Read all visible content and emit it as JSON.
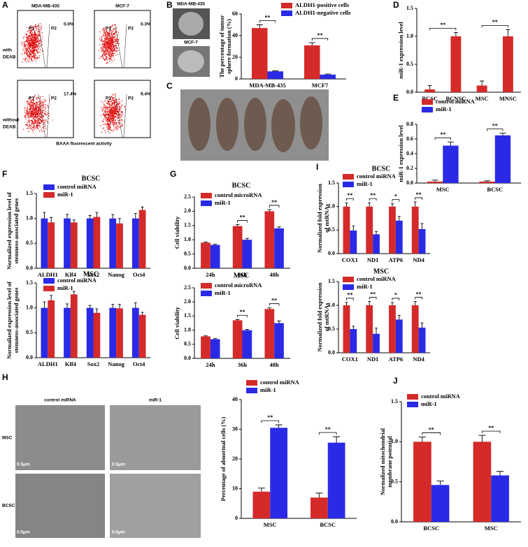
{
  "panels": {
    "letters": [
      "A",
      "B",
      "C",
      "D",
      "E",
      "F",
      "G",
      "H",
      "I",
      "J"
    ],
    "a": {
      "columns": [
        "MDA-MB-435",
        "MCF-7"
      ],
      "rows": [
        [
          "with",
          "DEAB"
        ],
        [
          "without",
          "DEAB"
        ]
      ],
      "gates": [
        "P1",
        "P2"
      ],
      "percent": [
        [
          "0.0%",
          "0.3%"
        ],
        [
          "17.4%",
          "9.4%"
        ]
      ],
      "xlabel": "BAAA fluorescent activity"
    },
    "b_images": [
      "MDA-MB-435",
      "MCF-7"
    ],
    "h": {
      "columns": [
        "control miRNA",
        "miR-1"
      ],
      "rows": [
        "MSC",
        "BCSC"
      ],
      "scale": "0.5μm"
    }
  },
  "chart_data": [
    {
      "type": "bar",
      "ylabel": [
        "The percentage of tumor",
        "sphere formation (%)"
      ],
      "categories": [
        "MDA-MB-435",
        "MCF7"
      ],
      "series": [
        {
          "name": "ALDH1-positive cells",
          "color": "#d42a2a",
          "values": [
            47,
            31
          ],
          "errors": [
            3,
            2.5
          ]
        },
        {
          "name": "ALDH1-negative cells",
          "color": "#2a2ae6",
          "values": [
            7,
            4
          ],
          "errors": [
            0.5,
            0.5
          ]
        }
      ],
      "ylim": [
        0,
        60
      ],
      "yticks": [
        0,
        20,
        40,
        60
      ],
      "significance": [
        "**",
        "**"
      ]
    },
    {
      "type": "bar",
      "ylabel": [
        "miR-1 expression level"
      ],
      "categories": [
        "BCSC",
        "BCNSC",
        "MSC",
        "MNSC"
      ],
      "series": [
        {
          "color": "#d42a2a",
          "values": [
            0.05,
            1.0,
            0.12,
            1.0
          ],
          "errors": [
            0.07,
            0.07,
            0.08,
            0.12
          ]
        }
      ],
      "ylim": [
        0,
        1.5
      ],
      "yticks": [
        {
          "value": 0,
          "label": "0.0"
        },
        0.5,
        {
          "value": 1,
          "label": "1.0"
        },
        1.5
      ],
      "significance": [
        "**",
        "**"
      ]
    },
    {
      "type": "bar",
      "ylabel": [
        "miR-1 expression level"
      ],
      "categories": [
        "MSC",
        "BCSC"
      ],
      "series": [
        {
          "name": "control miRNA",
          "color": "#d42a2a",
          "values": [
            0.02,
            0.02
          ],
          "errors": [
            0.02,
            0.01
          ]
        },
        {
          "name": "miR-1",
          "color": "#2a2ae6",
          "values": [
            0.51,
            0.65
          ],
          "errors": [
            0.05,
            0.03
          ]
        }
      ],
      "ylim": [
        0,
        0.8
      ],
      "yticks": [
        {
          "value": 0,
          "label": "0.0"
        },
        0.2,
        0.4,
        0.6,
        0.8
      ],
      "significance": [
        "**",
        "**"
      ]
    },
    {
      "type": "bar",
      "title": "BCSC",
      "ylabel": [
        "Normalized expression level of",
        "stemness-associated genes"
      ],
      "categories": [
        "ALDH1",
        "Klf4",
        "Sox2",
        "Nanog",
        "Oct4"
      ],
      "series": [
        {
          "name": "control miRNA",
          "color": "#2a2ae6",
          "values": [
            1.0,
            1.0,
            1.0,
            1.0,
            1.0
          ],
          "errors": [
            0.12,
            0.08,
            0.06,
            0.08,
            0.1
          ]
        },
        {
          "name": "miR-1",
          "color": "#d42a2a",
          "values": [
            0.92,
            0.92,
            1.03,
            0.9,
            1.17
          ],
          "errors": [
            0.1,
            0.05,
            0.09,
            0.1,
            0.06
          ]
        }
      ],
      "ylim": [
        0,
        1.5
      ],
      "yticks": [
        {
          "value": 0,
          "label": "0.0"
        },
        0.5,
        {
          "value": 1,
          "label": "1.0"
        },
        1.5
      ]
    },
    {
      "type": "bar",
      "title": "MSC",
      "ylabel": [
        "Normalized expression level of",
        "stemness-associated genes"
      ],
      "categories": [
        "ALDH1",
        "Klf4",
        "Sox2",
        "Nanog",
        "Oct4"
      ],
      "series": [
        {
          "name": "control miRNA",
          "color": "#2a2ae6",
          "values": [
            1.0,
            1.0,
            1.0,
            1.0,
            1.0
          ],
          "errors": [
            0.12,
            0.08,
            0.05,
            0.07,
            0.1
          ]
        },
        {
          "name": "miR-1",
          "color": "#d42a2a",
          "values": [
            1.15,
            1.27,
            0.9,
            0.99,
            0.86
          ],
          "errors": [
            0.1,
            0.06,
            0.08,
            0.08,
            0.05
          ]
        }
      ],
      "ylim": [
        0,
        1.5
      ],
      "yticks": [
        {
          "value": 0,
          "label": "0.0"
        },
        0.5,
        {
          "value": 1,
          "label": "1.0"
        },
        1.5
      ]
    },
    {
      "type": "bar",
      "title": "BCSC",
      "ylabel": [
        "Cell viability"
      ],
      "categories": [
        "24h",
        "36h",
        "48h"
      ],
      "series": [
        {
          "name": "control microRNA",
          "color": "#d42a2a",
          "values": [
            0.9,
            1.48,
            2.0
          ],
          "errors": [
            0.02,
            0.05,
            0.06
          ]
        },
        {
          "name": "miR-1",
          "color": "#2a2ae6",
          "values": [
            0.82,
            1.0,
            1.4
          ],
          "errors": [
            0.02,
            0.05,
            0.05
          ]
        }
      ],
      "ylim": [
        0,
        2.5
      ],
      "yticks": [
        {
          "value": 0,
          "label": "0.0"
        },
        0.5,
        {
          "value": 1,
          "label": "1.0"
        },
        1.5,
        {
          "value": 2,
          "label": "2.0"
        },
        2.5
      ],
      "significance": [
        null,
        "**",
        "**"
      ]
    },
    {
      "type": "bar",
      "title": "MSC",
      "ylabel": [
        "Cell viability"
      ],
      "categories": [
        "24h",
        "36h",
        "48h"
      ],
      "series": [
        {
          "name": "control microRNA",
          "color": "#d42a2a",
          "values": [
            0.78,
            1.35,
            1.75
          ],
          "errors": [
            0.02,
            0.03,
            0.04
          ]
        },
        {
          "name": "miR-1",
          "color": "#2a2ae6",
          "values": [
            0.68,
            1.0,
            1.25
          ],
          "errors": [
            0.02,
            0.03,
            0.08
          ]
        }
      ],
      "ylim": [
        0,
        2.5
      ],
      "yticks": [
        {
          "value": 0,
          "label": "0.0"
        },
        0.5,
        {
          "value": 1,
          "label": "1.0"
        },
        1.5,
        {
          "value": 2,
          "label": "2.0"
        },
        2.5
      ],
      "significance": [
        null,
        "**",
        "**"
      ]
    },
    {
      "type": "bar",
      "title": "BCSC",
      "ylabel": [
        "Normalized fold expression",
        "of mtRNAs"
      ],
      "categories": [
        "COX1",
        "ND1",
        "ATP6",
        "ND4"
      ],
      "series": [
        {
          "name": "control miRNA",
          "color": "#d42a2a",
          "values": [
            1.0,
            1.0,
            1.0,
            1.0
          ],
          "errors": [
            0.08,
            0.08,
            0.06,
            0.1
          ]
        },
        {
          "name": "miR-1",
          "color": "#2a2ae6",
          "values": [
            0.49,
            0.41,
            0.7,
            0.52
          ],
          "errors": [
            0.1,
            0.06,
            0.09,
            0.12
          ]
        }
      ],
      "ylim": [
        0,
        1.5
      ],
      "yticks": [
        {
          "value": 0,
          "label": "0.0"
        },
        0.5,
        {
          "value": 1,
          "label": "1.0"
        },
        1.5
      ],
      "significance": [
        "**",
        "**",
        "*",
        "**"
      ]
    },
    {
      "type": "bar",
      "title": "MSC",
      "ylabel": [
        "Normalized fold expression",
        "of mtRNAs"
      ],
      "categories": [
        "COX1",
        "ND1",
        "ATP6",
        "ND4"
      ],
      "series": [
        {
          "name": "control miRNA",
          "color": "#d42a2a",
          "values": [
            1.0,
            1.0,
            1.0,
            1.0
          ],
          "errors": [
            0.06,
            0.08,
            0.06,
            0.08
          ]
        },
        {
          "name": "miR-1",
          "color": "#2a2ae6",
          "values": [
            0.5,
            0.4,
            0.7,
            0.53
          ],
          "errors": [
            0.06,
            0.12,
            0.09,
            0.1
          ]
        }
      ],
      "ylim": [
        0,
        1.5
      ],
      "yticks": [
        {
          "value": 0,
          "label": "0.0"
        },
        0.5,
        {
          "value": 1,
          "label": "1.0"
        },
        1.5
      ],
      "significance": [
        "**",
        "**",
        "*",
        "**"
      ]
    },
    {
      "type": "bar",
      "ylabel": [
        "Percentage of abnormal cells (%)"
      ],
      "categories": [
        "MSC",
        "BCSC"
      ],
      "series": [
        {
          "name": "control miRNA",
          "color": "#d42a2a",
          "values": [
            9,
            7
          ],
          "errors": [
            1.2,
            1.5
          ]
        },
        {
          "name": "miR-1",
          "color": "#2a2ae6",
          "values": [
            30.5,
            25.5
          ],
          "errors": [
            1,
            2
          ]
        }
      ],
      "ylim": [
        0,
        40
      ],
      "yticks": [
        0,
        10,
        20,
        30,
        40
      ],
      "significance": [
        "**",
        "**"
      ]
    },
    {
      "type": "bar",
      "ylabel": [
        "Normalized mitochondrial",
        "membrane potential"
      ],
      "categories": [
        "BCSC",
        "MSC"
      ],
      "series": [
        {
          "name": "control miRNA",
          "color": "#d42a2a",
          "values": [
            1.0,
            1.0
          ],
          "errors": [
            0.06,
            0.08
          ]
        },
        {
          "name": "miR-1",
          "color": "#2a2ae6",
          "values": [
            0.46,
            0.58
          ],
          "errors": [
            0.05,
            0.05
          ]
        }
      ],
      "ylim": [
        0,
        1.5
      ],
      "yticks": [
        {
          "value": 0,
          "label": "0.0"
        },
        0.5,
        {
          "value": 1,
          "label": "1.0"
        },
        1.5
      ],
      "significance": [
        "**",
        "**"
      ]
    }
  ]
}
